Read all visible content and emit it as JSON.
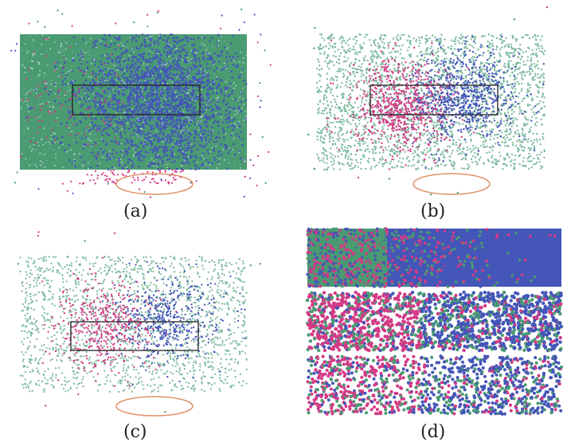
{
  "panels": [
    {
      "id": "a",
      "caption": "(a)",
      "style": "dense_overlap"
    },
    {
      "id": "b",
      "caption": "(b)",
      "style": "sparse_separated"
    },
    {
      "id": "c",
      "caption": "(c)",
      "style": "sparser_separated"
    },
    {
      "id": "d",
      "caption": "(d)",
      "style": "zoomed_strips"
    }
  ],
  "colors": {
    "green": "#4a9a72",
    "light_green": "#7fbba0",
    "blue": "#4456b8",
    "magenta": "#d43a86",
    "frame": "#222222",
    "ellipse": "#e0936a",
    "background": "#ffffff"
  }
}
